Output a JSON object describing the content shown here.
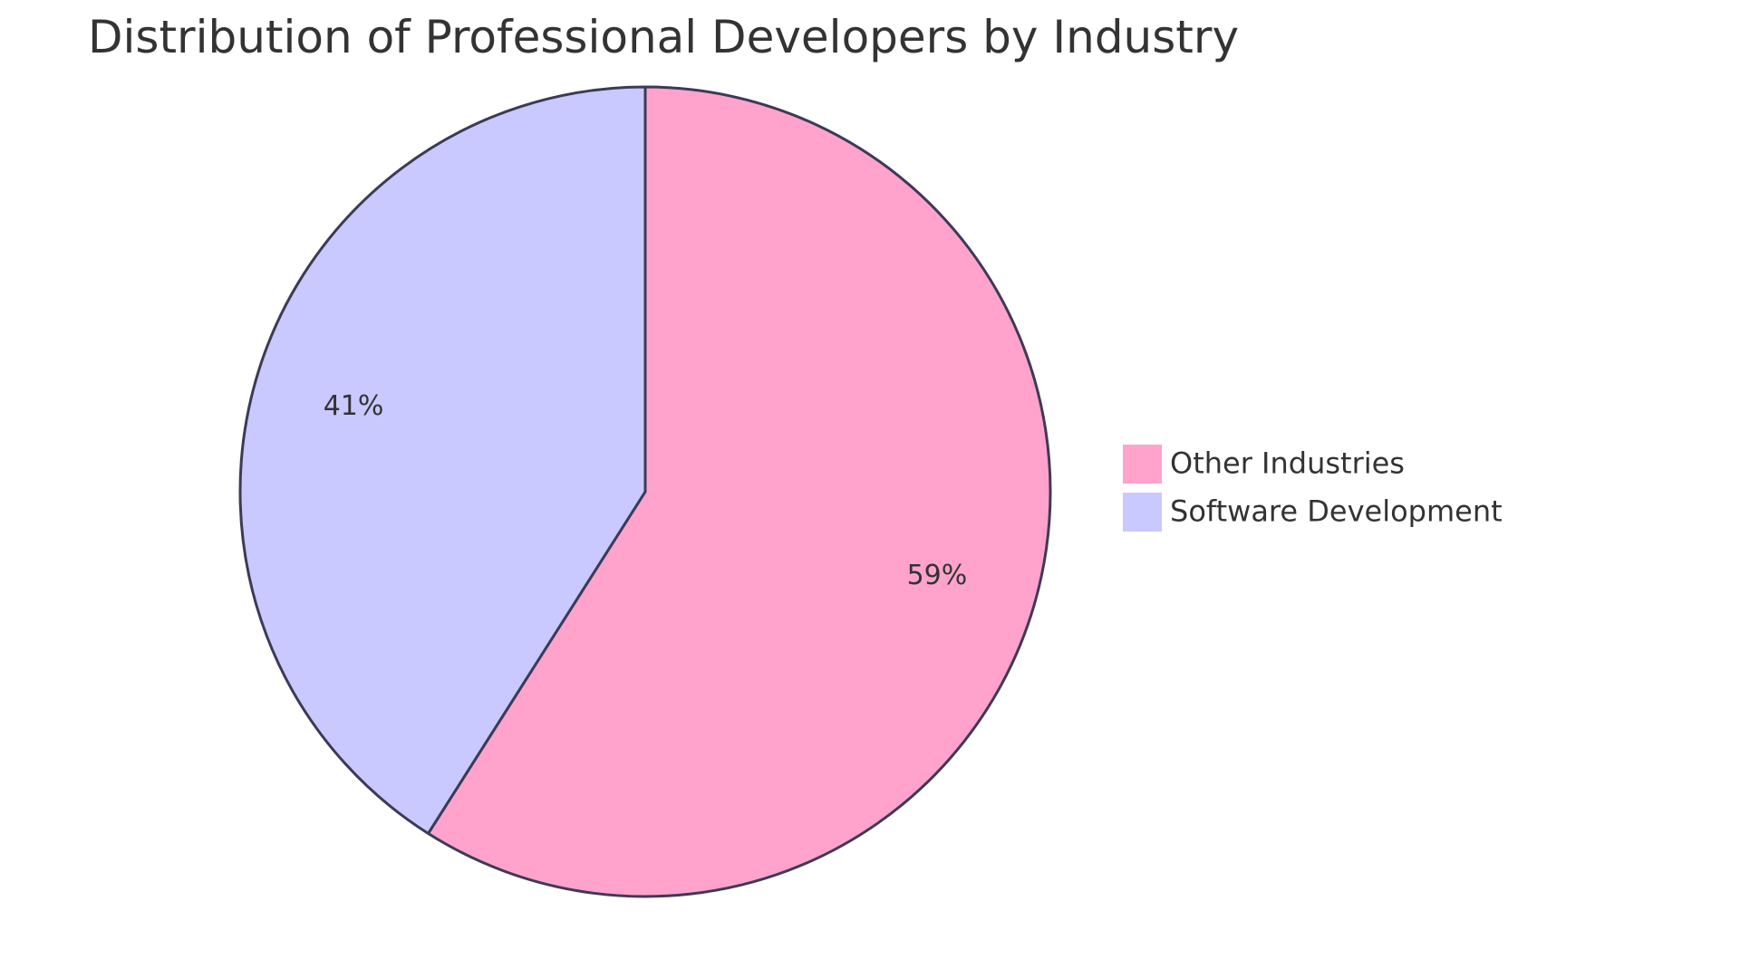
{
  "chart_data": {
    "type": "pie",
    "title": "Distribution of Professional Developers by Industry",
    "slices": [
      {
        "label": "Other Industries",
        "value": 59,
        "display": "59%",
        "color": "#FFA3CD"
      },
      {
        "label": "Software Development",
        "value": 41,
        "display": "41%",
        "color": "#C9C9FF"
      }
    ],
    "legend_position": "right",
    "stroke_color": "#3C3A57"
  }
}
